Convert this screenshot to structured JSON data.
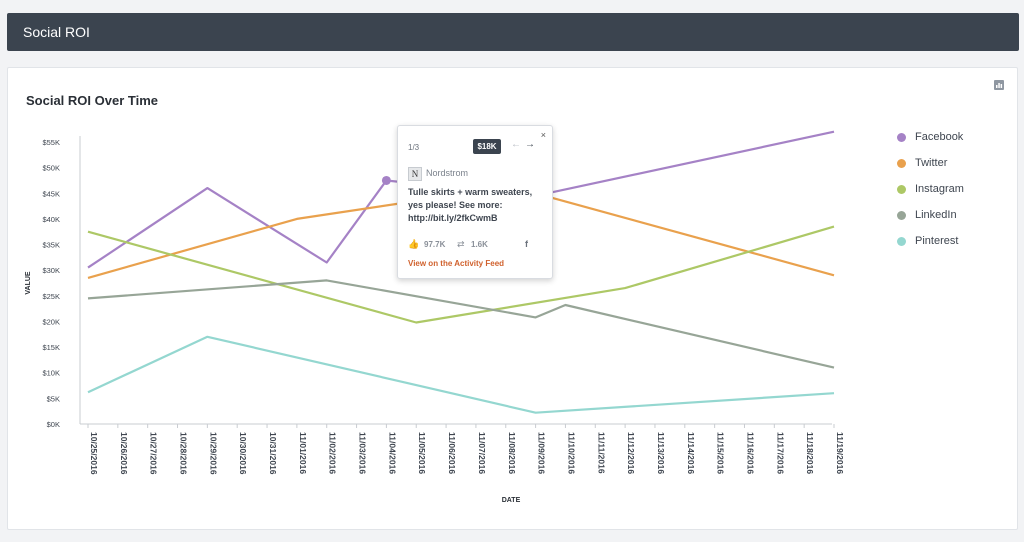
{
  "header": {
    "title": "Social ROI"
  },
  "card": {
    "title": "Social ROI Over Time",
    "chart_type_icon": "bar-chart-icon"
  },
  "colors": {
    "Facebook": "#a582c6",
    "Twitter": "#e9a14d",
    "Instagram": "#adc866",
    "LinkedIn": "#97a597",
    "Pinterest": "#94d7d0",
    "link": "#d0612d",
    "header_bg": "#3b444f"
  },
  "tooltip": {
    "pager": "1/3",
    "badge": "$18K",
    "prev_icon": "arrow-left-icon",
    "next_icon": "arrow-right-icon",
    "close": "×",
    "brand": "Nordstrom",
    "brand_logo": "N",
    "body": "Tulle skirts + warm sweaters, yes please! See more: http://bit.ly/2fkCwmB",
    "likes": "97.7K",
    "shares": "1.6K",
    "network_icon": "f",
    "link": "View on the Activity Feed"
  },
  "chart_data": {
    "type": "line",
    "title": "Social ROI Over Time",
    "xlabel": "DATE",
    "ylabel": "VALUE",
    "ylim": [
      0,
      55000
    ],
    "y_ticks": [
      "$0K",
      "$5K",
      "$10K",
      "$15K",
      "$20K",
      "$25K",
      "$30K",
      "$35K",
      "$40K",
      "$45K",
      "$50K",
      "$55K"
    ],
    "categories": [
      "10/25/2016",
      "10/26/2016",
      "10/27/2016",
      "10/28/2016",
      "10/29/2016",
      "10/30/2016",
      "10/31/2016",
      "11/01/2016",
      "11/02/2016",
      "11/03/2016",
      "11/04/2016",
      "11/05/2016",
      "11/06/2016",
      "11/07/2016",
      "11/08/2016",
      "11/09/2016",
      "11/10/2016",
      "11/11/2016",
      "11/12/2016",
      "11/13/2016",
      "11/14/2016",
      "11/15/2016",
      "11/16/2016",
      "11/17/2016",
      "11/18/2016",
      "11/19/2016"
    ],
    "legend_position": "right",
    "highlight": {
      "series": "Facebook",
      "x": "11/04/2016",
      "y": 47500
    },
    "series": [
      {
        "name": "Facebook",
        "points": [
          [
            "10/25/2016",
            30500
          ],
          [
            "10/29/2016",
            46000
          ],
          [
            "11/02/2016",
            31500
          ],
          [
            "11/04/2016",
            47500
          ],
          [
            "11/09/2016",
            44500
          ],
          [
            "11/19/2016",
            57000
          ]
        ]
      },
      {
        "name": "Twitter",
        "points": [
          [
            "10/25/2016",
            28500
          ],
          [
            "11/01/2016",
            40000
          ],
          [
            "11/05/2016",
            43500
          ],
          [
            "11/09/2016",
            45000
          ],
          [
            "11/19/2016",
            29000
          ]
        ]
      },
      {
        "name": "Instagram",
        "points": [
          [
            "10/25/2016",
            37500
          ],
          [
            "11/05/2016",
            19800
          ],
          [
            "11/12/2016",
            26500
          ],
          [
            "11/19/2016",
            38500
          ]
        ]
      },
      {
        "name": "LinkedIn",
        "points": [
          [
            "10/25/2016",
            24500
          ],
          [
            "11/02/2016",
            28000
          ],
          [
            "11/09/2016",
            20800
          ],
          [
            "11/10/2016",
            23200
          ],
          [
            "11/19/2016",
            11000
          ]
        ]
      },
      {
        "name": "Pinterest",
        "points": [
          [
            "10/25/2016",
            6200
          ],
          [
            "10/29/2016",
            17000
          ],
          [
            "11/09/2016",
            2200
          ],
          [
            "11/19/2016",
            6000
          ]
        ]
      }
    ]
  }
}
